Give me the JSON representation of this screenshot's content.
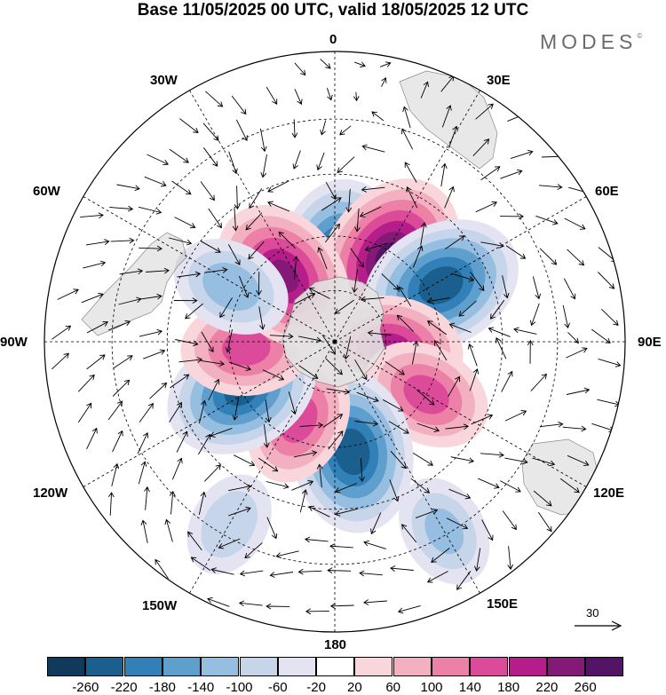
{
  "title": "Base 11/05/2025 00 UTC, valid 18/05/2025 12 UTC",
  "brand": {
    "text": "MODES",
    "mark": "©"
  },
  "longitude_labels": {
    "lon_0": "0",
    "lon_30e": "30E",
    "lon_60e": "60E",
    "lon_90e": "90E",
    "lon_120e": "120E",
    "lon_150e": "150E",
    "lon_180": "180",
    "lon_150w": "150W",
    "lon_120w": "120W",
    "lon_90w": "90W",
    "lon_60w": "60W",
    "lon_30w": "30W"
  },
  "vector_reference": {
    "value": "30",
    "icon": "arrow-right-icon"
  },
  "colorbar": {
    "colors": [
      "#0f3a5b",
      "#1a5f8e",
      "#3280b8",
      "#5f9fcd",
      "#96bee0",
      "#c6d5ea",
      "#e4e3f1",
      "#ffffff",
      "#f8d6db",
      "#f2b0c0",
      "#ec80a7",
      "#dc4b9a",
      "#b51e8a",
      "#851977",
      "#541466"
    ],
    "ticks": [
      "-260",
      "-220",
      "-180",
      "-140",
      "-100",
      "-60",
      "-20",
      "20",
      "60",
      "100",
      "140",
      "180",
      "220",
      "260"
    ]
  },
  "anomaly_centers": [
    {
      "lon_deg": 5,
      "colat_deg": 30,
      "value": -260
    },
    {
      "lon_deg": 33,
      "colat_deg": 38,
      "value": 260
    },
    {
      "lon_deg": 62,
      "colat_deg": 45,
      "value": -240
    },
    {
      "lon_deg": 98,
      "colat_deg": 22,
      "value": 190
    },
    {
      "lon_deg": 120,
      "colat_deg": 40,
      "value": 150
    },
    {
      "lon_deg": 171,
      "colat_deg": 42,
      "value": -240
    },
    {
      "lon_deg": -155,
      "colat_deg": 33,
      "value": 150
    },
    {
      "lon_deg": -118,
      "colat_deg": 40,
      "value": -220
    },
    {
      "lon_deg": -94,
      "colat_deg": 34,
      "value": 150
    },
    {
      "lon_deg": -38,
      "colat_deg": 32,
      "value": 220
    },
    {
      "lon_deg": -62,
      "colat_deg": 44,
      "value": -120
    },
    {
      "lon_deg": 150,
      "colat_deg": 74,
      "value": -100
    },
    {
      "lon_deg": -150,
      "colat_deg": 72,
      "value": -80
    }
  ]
}
